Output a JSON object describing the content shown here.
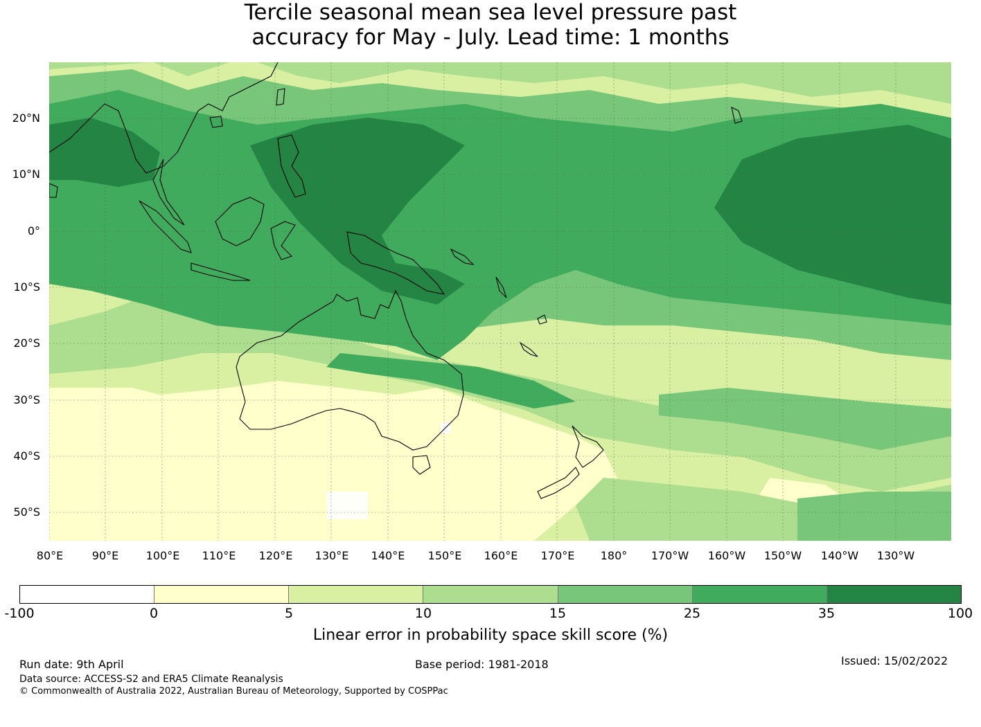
{
  "title": {
    "line1": "Tercile seasonal mean sea level pressure past",
    "line2": "accuracy for May - July. Lead time: 1 months"
  },
  "map": {
    "lat_labels": [
      "20°N",
      "10°N",
      "0°",
      "10°S",
      "20°S",
      "30°S",
      "40°S",
      "50°S"
    ],
    "lon_labels": [
      "80°E",
      "90°E",
      "100°E",
      "110°E",
      "120°E",
      "130°E",
      "140°E",
      "150°E",
      "160°E",
      "170°E",
      "180°",
      "170°W",
      "160°W",
      "150°W",
      "140°W",
      "130°W"
    ],
    "lat_range": [
      -55,
      30
    ],
    "lon_range": [
      80,
      240
    ],
    "gridlines": true,
    "colors": {
      "neg": "#ffffff",
      "c0_5": "#ffffcc",
      "c5_10": "#d9f0a3",
      "c10_15": "#addd8e",
      "c15_25": "#78c679",
      "c25_35": "#41ab5d",
      "c35_100": "#238443",
      "coast": "#000000",
      "grid": "#4d6b4d"
    }
  },
  "colorbar": {
    "ticks": [
      "-100",
      "0",
      "5",
      "10",
      "15",
      "25",
      "35",
      "100"
    ],
    "colors": [
      "#ffffff",
      "#ffffcc",
      "#d9f0a3",
      "#addd8e",
      "#78c679",
      "#41ab5d",
      "#238443"
    ],
    "label": "Linear error in probability space skill score (%)"
  },
  "footer": {
    "run_date": "Run date: 9th April",
    "base_period": "Base period: 1981-2018",
    "issued": "Issued: 15/02/2022",
    "data_source": "Data source: ACCESS-S2 and ERA5 Climate Reanalysis",
    "copyright": "© Commonwealth of Australia 2022, Australian Bureau of Meteorology, Supported by COSPPac"
  }
}
